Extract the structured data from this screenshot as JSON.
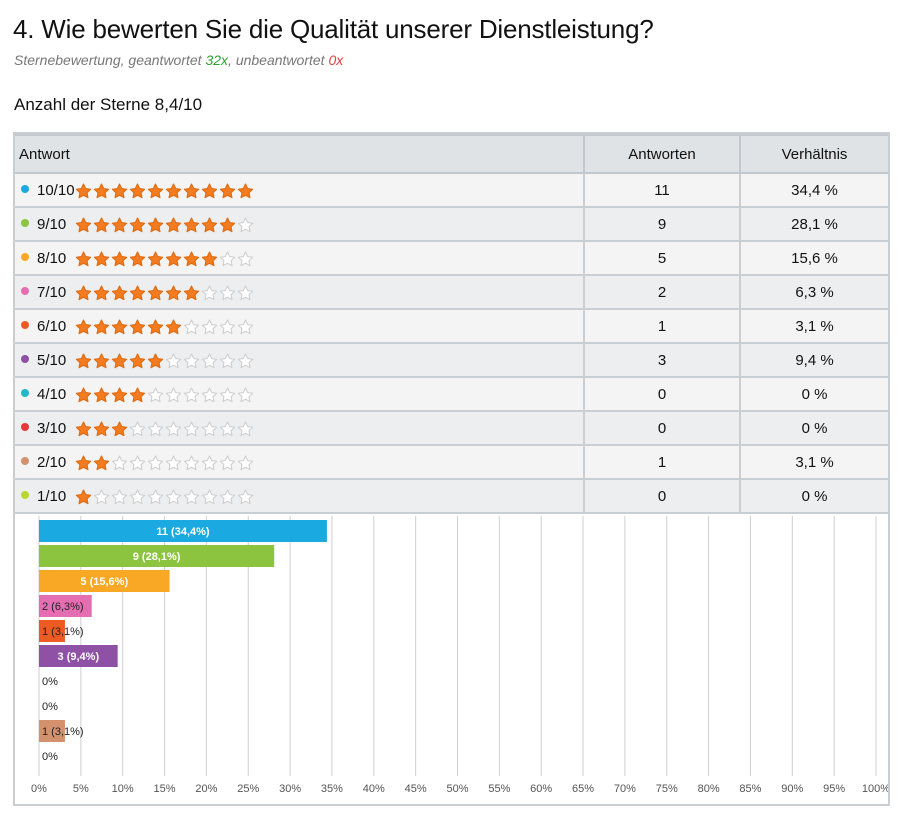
{
  "question": {
    "title": "4. Wie bewerten Sie die Qualität unserer Dienstleistung?",
    "type_label": "Sternebewertung, geantwortet ",
    "answered_count": "32x",
    "separator": ", unbeantwortet ",
    "unanswered_count": "0x",
    "average_text": "Anzahl der Sterne 8,4/10"
  },
  "table": {
    "headers": [
      "Antwort",
      "Antworten",
      "Verhältnis"
    ],
    "rows": [
      {
        "label": "10/10",
        "stars": 10,
        "count": "11",
        "ratio": "34,4 %",
        "color": "#1aa9e0"
      },
      {
        "label": "9/10",
        "stars": 9,
        "count": "9",
        "ratio": "28,1 %",
        "color": "#8cc43f"
      },
      {
        "label": "8/10",
        "stars": 8,
        "count": "5",
        "ratio": "15,6 %",
        "color": "#f9a825"
      },
      {
        "label": "7/10",
        "stars": 7,
        "count": "2",
        "ratio": "6,3 %",
        "color": "#e56eb2"
      },
      {
        "label": "6/10",
        "stars": 6,
        "count": "1",
        "ratio": "3,1 %",
        "color": "#ee5a24"
      },
      {
        "label": "5/10",
        "stars": 5,
        "count": "3",
        "ratio": "9,4 %",
        "color": "#8e51a6"
      },
      {
        "label": "4/10",
        "stars": 4,
        "count": "0",
        "ratio": "0 %",
        "color": "#21b8c7"
      },
      {
        "label": "3/10",
        "stars": 3,
        "count": "0",
        "ratio": "0 %",
        "color": "#e8363a"
      },
      {
        "label": "2/10",
        "stars": 2,
        "count": "1",
        "ratio": "3,1 %",
        "color": "#d4916e"
      },
      {
        "label": "1/10",
        "stars": 1,
        "count": "0",
        "ratio": "0 %",
        "color": "#b8d82e"
      }
    ]
  },
  "colors": {
    "star_filled": "#f47c20",
    "star_empty": "#cfcfcf",
    "grid": "#cfcfcf"
  },
  "chart_data": {
    "type": "bar",
    "orientation": "horizontal",
    "categories": [
      "10/10",
      "9/10",
      "8/10",
      "7/10",
      "6/10",
      "5/10",
      "4/10",
      "3/10",
      "2/10",
      "1/10"
    ],
    "values": [
      34.4,
      28.1,
      15.6,
      6.3,
      3.1,
      9.4,
      0,
      0,
      3.1,
      0
    ],
    "data_labels": [
      "11 (34,4%)",
      "9 (28,1%)",
      "5 (15,6%)",
      "2 (6,3%)",
      "1 (3,1%)",
      "3 (9,4%)",
      "0%",
      "0%",
      "1 (3,1%)",
      "0%"
    ],
    "label_colors": [
      "#ffffff",
      "#ffffff",
      "#ffffff",
      "#222222",
      "#222222",
      "#ffffff",
      "#222222",
      "#222222",
      "#222222",
      "#222222"
    ],
    "colors": [
      "#1aa9e0",
      "#8cc43f",
      "#f9a825",
      "#e56eb2",
      "#ee5a24",
      "#8e51a6",
      "#21b8c7",
      "#e8363a",
      "#d4916e",
      "#b8d82e"
    ],
    "xlim": [
      0,
      100
    ],
    "x_ticks": [
      "0%",
      "5%",
      "10%",
      "15%",
      "20%",
      "25%",
      "30%",
      "35%",
      "40%",
      "45%",
      "50%",
      "55%",
      "60%",
      "65%",
      "70%",
      "75%",
      "80%",
      "85%",
      "90%",
      "95%",
      "100%"
    ],
    "grid": true,
    "legend": "none"
  }
}
